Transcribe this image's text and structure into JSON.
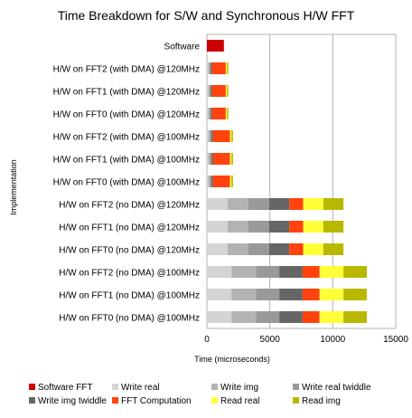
{
  "chart_data": {
    "type": "bar",
    "orientation": "horizontal",
    "stacked": true,
    "title": "Time Breakdown for S/W and Synchronous H/W FFT",
    "xlabel": "Time (microseconds)",
    "ylabel": "Implementation",
    "xlim": [
      0,
      15000
    ],
    "xticks": [
      0,
      5000,
      10000,
      15000
    ],
    "grid": true,
    "legend_position": "bottom",
    "categories": [
      "Software",
      "H/W on FFT2 (with DMA) @120MHz",
      "H/W on FFT1 (with DMA) @120MHz",
      "H/W on FFT0 (with DMA) @120MHz",
      "H/W on FFT2 (with DMA) @100MHz",
      "H/W on FFT1 (with DMA) @100MHz",
      "H/W on FFT0 (with DMA) @100MHz",
      "H/W on FFT2 (no DMA) @120MHz",
      "H/W on FFT1 (no DMA) @120MHz",
      "H/W on FFT0 (no DMA) @120MHz",
      "H/W on FFT2 (no DMA) @100MHz",
      "H/W on FFT1 (no DMA) @100MHz",
      "H/W on FFT0 (no DMA) @100MHz"
    ],
    "series": [
      {
        "name": "Software FFT",
        "color": "#cc0000",
        "values": [
          1350,
          0,
          0,
          0,
          0,
          0,
          0,
          0,
          0,
          0,
          0,
          0,
          0
        ]
      },
      {
        "name": "Write real",
        "color": "#d4d4d4",
        "values": [
          0,
          100,
          100,
          100,
          120,
          120,
          120,
          1650,
          1650,
          1650,
          1950,
          1950,
          1950
        ]
      },
      {
        "name": "Write img",
        "color": "#b3b3b3",
        "values": [
          0,
          100,
          100,
          100,
          120,
          120,
          120,
          1650,
          1650,
          1650,
          1950,
          1950,
          1950
        ]
      },
      {
        "name": "Write real twiddle",
        "color": "#999999",
        "values": [
          0,
          100,
          100,
          100,
          120,
          120,
          120,
          1650,
          1650,
          1650,
          1850,
          1850,
          1850
        ]
      },
      {
        "name": "Write img twiddle",
        "color": "#666666",
        "values": [
          0,
          100,
          100,
          100,
          120,
          120,
          120,
          1600,
          1600,
          1600,
          1850,
          1850,
          1850
        ]
      },
      {
        "name": "FFT Computation",
        "color": "#ff420e",
        "values": [
          0,
          1100,
          1100,
          1100,
          1350,
          1350,
          1350,
          1100,
          1100,
          1100,
          1350,
          1350,
          1350
        ]
      },
      {
        "name": "Read real",
        "color": "#ffff38",
        "values": [
          0,
          100,
          100,
          100,
          120,
          120,
          120,
          1600,
          1600,
          1600,
          1900,
          1900,
          1900
        ]
      },
      {
        "name": "Read img",
        "color": "#b8b800",
        "values": [
          0,
          100,
          100,
          100,
          120,
          120,
          120,
          1600,
          1600,
          1600,
          1850,
          1850,
          1850
        ]
      }
    ]
  }
}
